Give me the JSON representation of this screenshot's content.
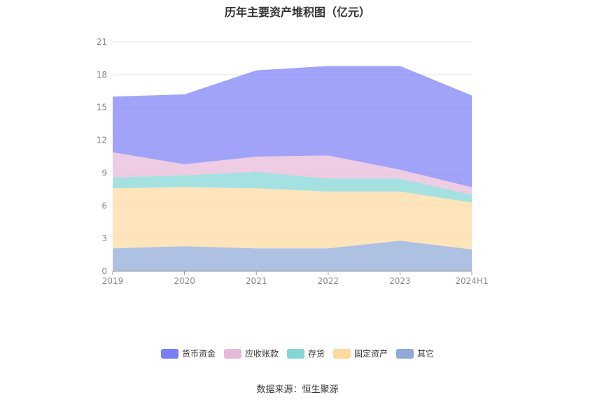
{
  "chart_data": {
    "type": "area",
    "stacked": true,
    "title": "历年主要资产堆积图（亿元）",
    "categories": [
      "2019",
      "2020",
      "2021",
      "2022",
      "2023",
      "2024H1"
    ],
    "ylim": [
      0,
      21
    ],
    "yticks": [
      "0",
      "3",
      "6",
      "9",
      "12",
      "15",
      "18",
      "21"
    ],
    "grid": true,
    "legend_position": "bottom",
    "series": [
      {
        "name": "其它",
        "color": "#8fa9d8",
        "values": [
          2.1,
          2.3,
          2.1,
          2.1,
          2.8,
          2.0
        ]
      },
      {
        "name": "固定资产",
        "color": "#fdd9a0",
        "values": [
          5.5,
          5.4,
          5.5,
          5.2,
          4.5,
          4.3
        ]
      },
      {
        "name": "存货",
        "color": "#82d6d6",
        "values": [
          1.0,
          1.1,
          1.5,
          1.2,
          1.2,
          0.7
        ]
      },
      {
        "name": "应收账款",
        "color": "#e8b8d8",
        "values": [
          2.3,
          1.0,
          1.4,
          2.1,
          0.8,
          0.7
        ]
      },
      {
        "name": "货币资金",
        "color": "#7b7ff5",
        "values": [
          5.1,
          6.4,
          7.9,
          8.2,
          9.5,
          8.4
        ]
      }
    ]
  },
  "legend_order": [
    "货币资金",
    "应收账款",
    "存货",
    "固定资产",
    "其它"
  ],
  "source": "数据来源：恒生聚源"
}
